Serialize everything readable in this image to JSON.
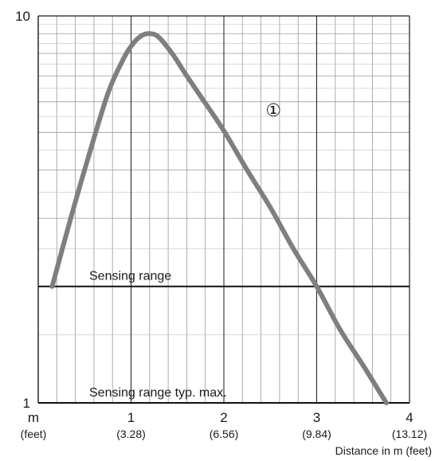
{
  "chart_data": {
    "type": "line",
    "xlabel": "Distance in m (feet)",
    "ylabel": "",
    "x_unit_label": "m",
    "x_unit_sub_label": "(feet)",
    "xlim": [
      0,
      4
    ],
    "ylim": [
      1,
      10
    ],
    "y_scale": "log",
    "grid": true,
    "x_ticks": [
      {
        "value": 1,
        "label": "1",
        "sub": "(3.28)"
      },
      {
        "value": 2,
        "label": "2",
        "sub": "(6.56)"
      },
      {
        "value": 3,
        "label": "3",
        "sub": "(9.84)"
      },
      {
        "value": 4,
        "label": "4",
        "sub": "(13.12)"
      }
    ],
    "y_ticks": [
      {
        "value": 1,
        "label": "1"
      },
      {
        "value": 10,
        "label": "10"
      }
    ],
    "series": [
      {
        "name": "",
        "color": "#7f7f7f",
        "x": [
          0.15,
          0.35,
          0.55,
          0.75,
          0.9,
          1.0,
          1.1,
          1.2,
          1.3,
          1.45,
          1.6,
          1.8,
          2.0,
          2.25,
          2.5,
          2.75,
          3.0,
          3.25,
          3.5,
          3.75
        ],
        "y": [
          2.0,
          3.0,
          4.4,
          6.3,
          7.6,
          8.35,
          8.85,
          9.0,
          8.8,
          7.95,
          7.0,
          5.95,
          5.05,
          4.0,
          3.2,
          2.5,
          2.0,
          1.55,
          1.25,
          1.0
        ]
      }
    ],
    "reference_lines": [
      {
        "y": 2,
        "label": "Sensing range"
      },
      {
        "y": 1,
        "label": "Sensing range typ. max."
      }
    ],
    "annotations": [
      {
        "text": "①",
        "x": 2.45,
        "y": 5.5
      }
    ]
  }
}
